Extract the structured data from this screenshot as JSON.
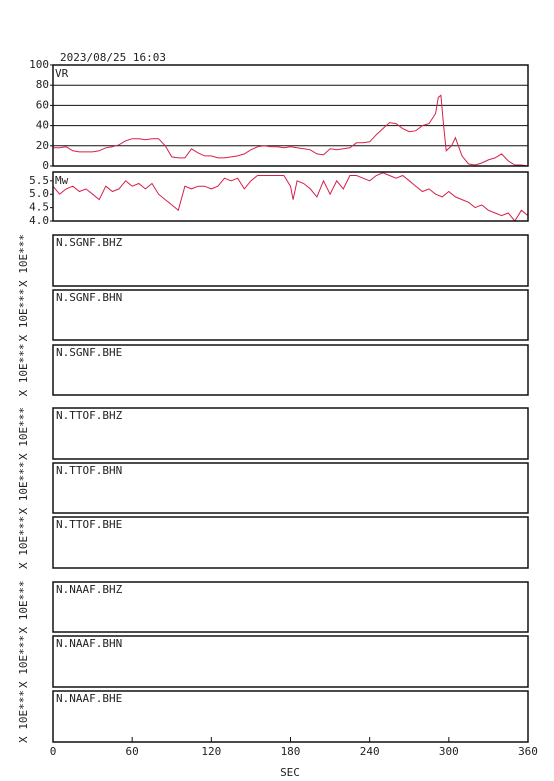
{
  "title": "2023/08/25 16:03",
  "xlabel": "SEC",
  "xlim": [
    0,
    360
  ],
  "xticks": [
    0,
    60,
    120,
    180,
    240,
    300,
    360
  ],
  "station_ylabel": "X 10E***",
  "stations": [
    "N.SGNF.BHZ",
    "N.SGNF.BHN",
    "N.SGNF.BHE",
    "N.TTOF.BHZ",
    "N.TTOF.BHN",
    "N.TTOF.BHE",
    "N.NAAF.BHZ",
    "N.NAAF.BHN",
    "N.NAAF.BHE"
  ],
  "chart_data": [
    {
      "type": "line",
      "label": "VR",
      "color": "#d6204a",
      "grid": true,
      "ylim": [
        0,
        100
      ],
      "yticks": [
        0,
        20,
        40,
        60,
        80,
        100
      ],
      "x": [
        0,
        5,
        10,
        15,
        20,
        25,
        30,
        35,
        40,
        45,
        50,
        55,
        60,
        65,
        70,
        75,
        80,
        85,
        90,
        95,
        100,
        105,
        110,
        115,
        120,
        125,
        130,
        135,
        140,
        145,
        150,
        155,
        160,
        165,
        170,
        175,
        180,
        185,
        190,
        195,
        200,
        205,
        210,
        215,
        220,
        225,
        230,
        235,
        240,
        245,
        250,
        255,
        260,
        265,
        270,
        275,
        280,
        285,
        290,
        292,
        294,
        296,
        298,
        302,
        305,
        310,
        315,
        320,
        325,
        330,
        335,
        340,
        345,
        350,
        355,
        360
      ],
      "values": [
        18,
        18,
        19,
        15,
        14,
        14,
        14,
        15,
        18,
        19,
        21,
        25,
        27,
        27,
        26,
        27,
        27,
        20,
        9,
        8,
        8,
        17,
        13,
        10,
        10,
        8,
        8,
        9,
        10,
        12,
        16,
        19,
        20,
        19,
        19,
        18,
        19,
        18,
        17,
        16,
        12,
        11,
        17,
        16,
        17,
        18,
        23,
        23,
        24,
        31,
        37,
        43,
        42,
        37,
        34,
        35,
        40,
        42,
        52,
        68,
        70,
        40,
        15,
        20,
        28,
        10,
        2,
        1,
        3,
        6,
        8,
        12,
        5,
        1,
        1,
        0
      ]
    },
    {
      "type": "line",
      "label": "Mw",
      "color": "#d6204a",
      "grid": false,
      "ylim": [
        4.0,
        5.83
      ],
      "yticks": [
        {
          "value": 4,
          "label": "4.0"
        },
        {
          "value": 4.5,
          "label": "4.5"
        },
        {
          "value": 5,
          "label": "5.0"
        },
        {
          "value": 5.5,
          "label": "5.5"
        }
      ],
      "x": [
        0,
        5,
        10,
        15,
        20,
        25,
        30,
        35,
        40,
        45,
        50,
        55,
        60,
        65,
        70,
        75,
        80,
        85,
        90,
        95,
        100,
        105,
        110,
        115,
        120,
        125,
        130,
        135,
        140,
        145,
        150,
        155,
        160,
        165,
        170,
        175,
        180,
        182,
        185,
        190,
        195,
        200,
        205,
        210,
        215,
        220,
        225,
        230,
        235,
        240,
        245,
        250,
        255,
        260,
        265,
        270,
        275,
        280,
        285,
        290,
        295,
        300,
        305,
        310,
        315,
        320,
        325,
        330,
        335,
        340,
        345,
        350,
        355,
        360
      ],
      "values": [
        5.3,
        5.0,
        5.2,
        5.3,
        5.1,
        5.2,
        5.0,
        4.8,
        5.3,
        5.1,
        5.2,
        5.5,
        5.3,
        5.4,
        5.2,
        5.4,
        5.0,
        4.8,
        4.6,
        4.4,
        5.3,
        5.2,
        5.3,
        5.3,
        5.2,
        5.3,
        5.6,
        5.5,
        5.6,
        5.2,
        5.5,
        5.7,
        5.7,
        5.7,
        5.7,
        5.7,
        5.3,
        4.8,
        5.5,
        5.4,
        5.2,
        4.9,
        5.5,
        5.0,
        5.5,
        5.2,
        5.7,
        5.7,
        5.6,
        5.5,
        5.7,
        5.8,
        5.7,
        5.6,
        5.7,
        5.5,
        5.3,
        5.1,
        5.2,
        5.0,
        4.9,
        5.1,
        4.9,
        4.8,
        4.7,
        4.5,
        4.6,
        4.4,
        4.3,
        4.2,
        4.3,
        4.0,
        4.4,
        4.2
      ]
    }
  ]
}
